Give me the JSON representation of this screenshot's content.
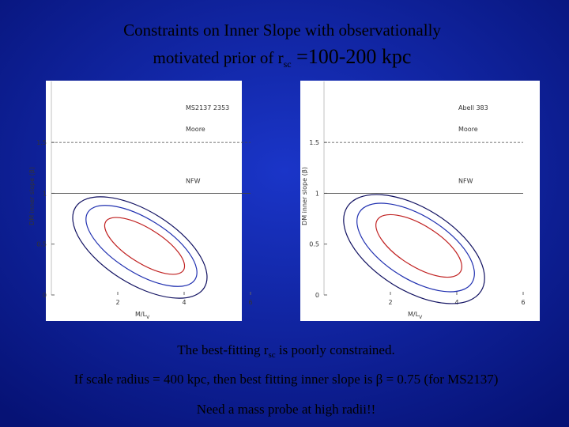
{
  "title": {
    "line1": "Constraints on Inner Slope with observationally",
    "line2_pre": "motivated prior of r",
    "line2_sub": "sc",
    "line2_post": " =100-200 kpc"
  },
  "plots": [
    {
      "label": "MS2137 2353"
    },
    {
      "label": "Abell 383"
    }
  ],
  "axes": {
    "xlabel": "M/L",
    "xlabel_sub": "V",
    "ylabel": "DM inner slope (β)",
    "xlim": [
      0,
      6
    ],
    "ylim": [
      0,
      2.1
    ],
    "xticks": [
      2,
      4,
      6
    ],
    "yticks": [
      0,
      0.5,
      1,
      1.5
    ]
  },
  "lines": [
    {
      "label": "Moore",
      "value": 1.5,
      "style": "dashed"
    },
    {
      "label": "NFW",
      "value": 1,
      "style": "solid"
    }
  ],
  "footer": {
    "line1_pre": "The best-fitting r",
    "line1_sub": "sc",
    "line1_post": " is poorly constrained.",
    "line2": "If scale radius = 400 kpc, then best fitting inner slope is β = 0.75 (for MS2137)",
    "line3": "Need a mass probe at high radii!!"
  }
}
